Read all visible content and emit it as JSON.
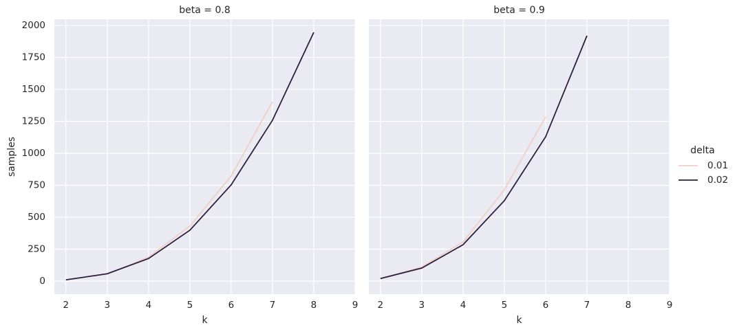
{
  "chart_data": [
    {
      "type": "line",
      "title": "beta = 0.8",
      "x_label": "k",
      "y_label": "samples",
      "x": [
        2,
        3,
        4,
        5,
        6,
        7,
        8
      ],
      "series": [
        {
          "name": "0.01",
          "color": "#f0cec6",
          "values": [
            10,
            55,
            188,
            430,
            822,
            1403,
            null
          ]
        },
        {
          "name": "0.02",
          "color": "#2d1e3e",
          "values": [
            10,
            58,
            177,
            398,
            753,
            1258,
            1946
          ]
        }
      ],
      "xlim": [
        1.72,
        9
      ],
      "xticks": [
        2,
        3,
        4,
        5,
        6,
        7,
        8,
        9
      ],
      "ylim": [
        -102,
        2048
      ],
      "yticks": [
        0,
        250,
        500,
        750,
        1000,
        1250,
        1500,
        1750,
        2000
      ],
      "grid": true
    },
    {
      "type": "line",
      "title": "beta = 0.9",
      "x_label": "k",
      "x": [
        2,
        3,
        4,
        5,
        6,
        7
      ],
      "series": [
        {
          "name": "0.01",
          "color": "#f0cec6",
          "values": [
            20,
            110,
            306,
            715,
            1285,
            null
          ]
        },
        {
          "name": "0.02",
          "color": "#2d1e3e",
          "values": [
            20,
            102,
            285,
            629,
            1129,
            1919
          ]
        }
      ],
      "xlim": [
        1.72,
        9
      ],
      "xticks": [
        2,
        3,
        4,
        5,
        6,
        7,
        8,
        9
      ],
      "ylim": [
        -102,
        2048
      ],
      "yticks": [
        0,
        250,
        500,
        750,
        1000,
        1250,
        1500,
        1750,
        2000
      ],
      "grid": true
    }
  ],
  "legend": {
    "title": "delta",
    "position": "right"
  }
}
